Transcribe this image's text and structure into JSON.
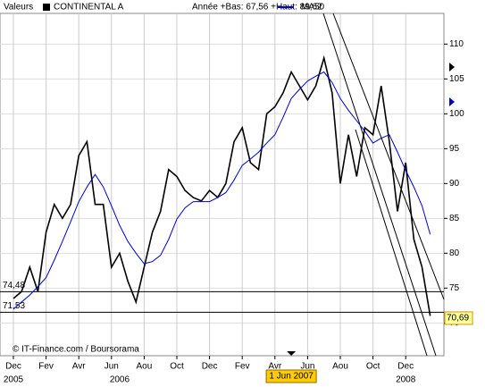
{
  "chart_data": {
    "type": "line",
    "title": "Valeurs",
    "subtitle": "Année +Bas: 67,56 +Haut: 89,62",
    "source": "© IT-Finance.com / Boursorama",
    "categories": [
      "Dec",
      null,
      null,
      null,
      "Fev",
      null,
      null,
      null,
      "Avr",
      null,
      null,
      null,
      "Jun",
      null,
      null,
      null,
      "Aou",
      null,
      null,
      null,
      "Oct",
      null,
      null,
      null,
      "Dec",
      null,
      null,
      null,
      "Fev",
      null,
      null,
      null,
      "Avr",
      null,
      null,
      null,
      "Jun",
      null,
      null,
      null,
      "Aou",
      null,
      null,
      null,
      "Oct",
      null,
      null,
      null,
      "Dec",
      null,
      null,
      null
    ],
    "years": [
      {
        "at": 0,
        "label": "2005"
      },
      {
        "at": 13,
        "label": "2006"
      },
      {
        "at": 48,
        "label": "2008"
      }
    ],
    "series": [
      {
        "name": "CONTINENTAL A",
        "color": "#000000",
        "values": [
          73.5,
          74.5,
          78,
          74.5,
          83,
          87,
          85,
          87,
          94,
          96,
          87,
          87,
          78,
          80,
          76,
          73,
          78,
          83,
          86,
          92,
          91,
          89,
          88,
          87.5,
          89,
          88,
          90,
          96,
          98,
          93,
          92,
          100,
          101,
          103,
          106,
          104,
          102,
          104,
          108,
          103,
          90,
          97,
          91,
          98,
          97,
          104,
          96,
          86,
          93,
          82,
          78,
          71
        ]
      },
      {
        "name": "MA50",
        "color": "#0000cc",
        "values": [
          72,
          73,
          74,
          75.2,
          76.5,
          79,
          81.7,
          84.5,
          87.4,
          89.5,
          91.3,
          89.5,
          86.8,
          84,
          81.7,
          80,
          78.5,
          78.8,
          79.7,
          82,
          84.9,
          86.5,
          87.4,
          87.4,
          87.4,
          88,
          88.7,
          90.5,
          92.6,
          93.5,
          94.5,
          95.8,
          97,
          99.5,
          102.2,
          103.5,
          104.7,
          105.4,
          106,
          104.5,
          102.2,
          100.5,
          99,
          97.5,
          95.8,
          96.5,
          97,
          94.5,
          91.9,
          89.5,
          86.8,
          82.7
        ]
      }
    ],
    "levels": [
      {
        "value": 74.48,
        "label": "74,48"
      },
      {
        "value": 71.53,
        "label": "71,53"
      }
    ],
    "last": {
      "value": 70.69,
      "label": "70,69"
    },
    "annotation": {
      "at": 34,
      "label": "1 Jun 2007"
    },
    "ylim": [
      65.3,
      114.4
    ],
    "yticks": [
      70,
      75,
      80,
      85,
      90,
      95,
      100,
      105,
      110
    ],
    "grid": true
  }
}
